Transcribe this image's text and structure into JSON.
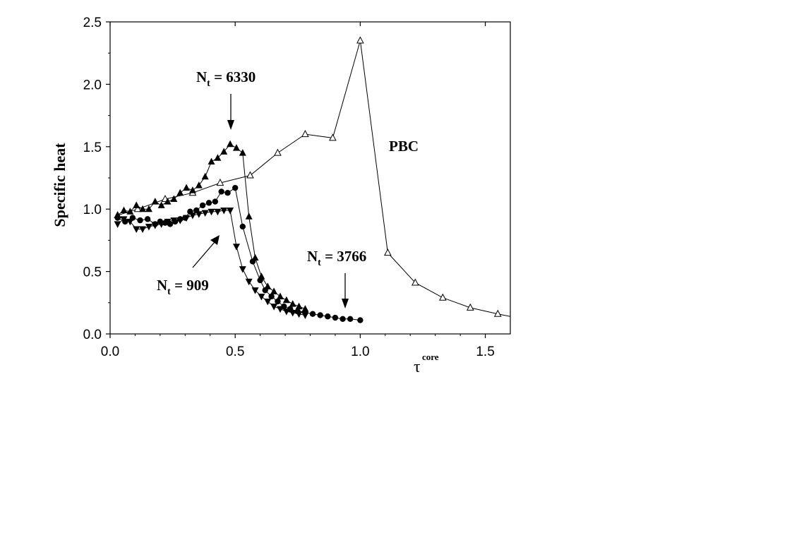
{
  "chart_data": {
    "type": "scatter",
    "xlabel": "τ",
    "xlabel_superscript": "core",
    "ylabel": "Specific heat",
    "xlim": [
      0,
      1.6
    ],
    "ylim": [
      0,
      2.5
    ],
    "x_ticks": [
      {
        "value": 0.0,
        "label": "0.0"
      },
      {
        "value": 0.5,
        "label": "0.5"
      },
      {
        "value": 1.0,
        "label": "1.0"
      },
      {
        "value": 1.5,
        "label": "1.5"
      }
    ],
    "y_ticks": [
      {
        "value": 0.0,
        "label": "0.0"
      },
      {
        "value": 0.5,
        "label": "0.5"
      },
      {
        "value": 1.0,
        "label": "1.0"
      },
      {
        "value": 1.5,
        "label": "1.5"
      },
      {
        "value": 2.0,
        "label": "2.0"
      },
      {
        "value": 2.5,
        "label": "2.5"
      }
    ],
    "grid": false,
    "series": [
      {
        "marker": "open-triangle-up",
        "connected": true,
        "color": "#000000",
        "x": [
          0.03,
          0.11,
          0.22,
          0.33,
          0.44,
          0.56,
          0.67,
          0.78,
          0.89,
          1.0,
          1.11,
          1.22,
          1.33,
          1.44,
          1.55,
          1.6
        ],
        "y": [
          0.95,
          1.0,
          1.08,
          1.13,
          1.21,
          1.27,
          1.45,
          1.6,
          1.57,
          2.35,
          0.65,
          0.41,
          0.29,
          0.21,
          0.16,
          0.14
        ]
      },
      {
        "marker": "filled-triangle-up",
        "connected": true,
        "color": "#000000",
        "x": [
          0.03,
          0.055,
          0.08,
          0.105,
          0.13,
          0.155,
          0.18,
          0.205,
          0.23,
          0.255,
          0.28,
          0.305,
          0.33,
          0.355,
          0.38,
          0.405,
          0.43,
          0.455,
          0.48,
          0.505,
          0.53,
          0.555,
          0.58,
          0.605,
          0.63,
          0.655,
          0.68,
          0.705,
          0.73,
          0.755,
          0.78
        ],
        "y": [
          0.95,
          0.99,
          0.98,
          1.03,
          1.0,
          1.0,
          1.06,
          1.03,
          1.06,
          1.08,
          1.13,
          1.17,
          1.15,
          1.19,
          1.26,
          1.38,
          1.41,
          1.46,
          1.52,
          1.49,
          1.45,
          0.94,
          0.61,
          0.46,
          0.38,
          0.34,
          0.3,
          0.27,
          0.24,
          0.22,
          0.2
        ]
      },
      {
        "marker": "filled-circle",
        "connected": true,
        "color": "#000000",
        "x": [
          0.03,
          0.06,
          0.09,
          0.12,
          0.15,
          0.18,
          0.2,
          0.22,
          0.24,
          0.26,
          0.28,
          0.3,
          0.32,
          0.345,
          0.37,
          0.395,
          0.42,
          0.445,
          0.47,
          0.5,
          0.53,
          0.57,
          0.6,
          0.62,
          0.645,
          0.67,
          0.695,
          0.72,
          0.75,
          0.78,
          0.81,
          0.84,
          0.87,
          0.9,
          0.93,
          0.96,
          1.0
        ],
        "y": [
          0.93,
          0.9,
          0.93,
          0.91,
          0.92,
          0.88,
          0.9,
          0.89,
          0.88,
          0.9,
          0.92,
          0.93,
          0.98,
          0.99,
          1.03,
          1.05,
          1.06,
          1.14,
          1.13,
          1.17,
          0.86,
          0.58,
          0.43,
          0.35,
          0.3,
          0.26,
          0.22,
          0.2,
          0.18,
          0.17,
          0.16,
          0.15,
          0.14,
          0.13,
          0.12,
          0.12,
          0.11
        ]
      },
      {
        "marker": "filled-triangle-down",
        "connected": true,
        "color": "#000000",
        "x": [
          0.03,
          0.055,
          0.08,
          0.105,
          0.13,
          0.155,
          0.18,
          0.205,
          0.23,
          0.255,
          0.28,
          0.305,
          0.33,
          0.355,
          0.38,
          0.405,
          0.43,
          0.455,
          0.48,
          0.505,
          0.53,
          0.555,
          0.58,
          0.605,
          0.63,
          0.655,
          0.68,
          0.705,
          0.73,
          0.755,
          0.78
        ],
        "y": [
          0.88,
          0.92,
          0.9,
          0.84,
          0.84,
          0.86,
          0.87,
          0.88,
          0.9,
          0.91,
          0.91,
          0.93,
          0.95,
          0.96,
          0.97,
          0.98,
          0.98,
          0.99,
          0.99,
          0.7,
          0.52,
          0.42,
          0.35,
          0.3,
          0.26,
          0.22,
          0.2,
          0.18,
          0.17,
          0.16,
          0.15
        ]
      }
    ],
    "annotations": [
      {
        "text": "N",
        "subscript": "t",
        "suffix": " = 6330",
        "arrow_to": [
          0.48,
          1.64
        ]
      },
      {
        "text": "N",
        "subscript": "t",
        "suffix": " = 909",
        "arrow_to": [
          0.43,
          0.86
        ]
      },
      {
        "text": "N",
        "subscript": "t",
        "suffix": " = 3766",
        "arrow_to": [
          0.94,
          0.22
        ]
      },
      {
        "text": "PBC"
      }
    ]
  }
}
